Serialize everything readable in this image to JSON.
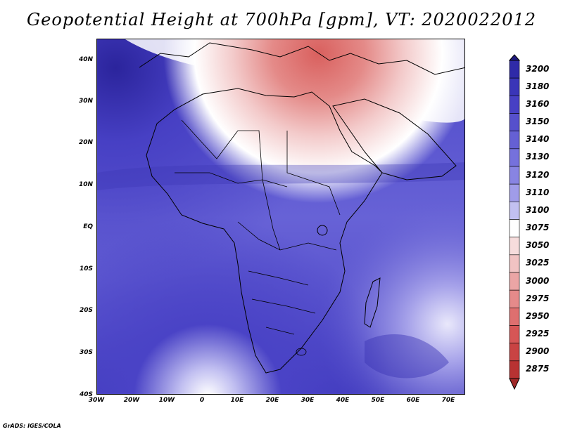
{
  "title": "Geopotential Height at 700hPa [gpm], VT: 2020022012",
  "credit": "GrADS: IGES/COLA",
  "map": {
    "lat_labels": [
      "40N",
      "30N",
      "20N",
      "10N",
      "EQ",
      "10S",
      "20S",
      "30S",
      "40S"
    ],
    "lat_values": [
      40,
      30,
      20,
      10,
      0,
      -10,
      -20,
      -30,
      -40
    ],
    "lon_labels": [
      "30W",
      "20W",
      "10W",
      "0",
      "10E",
      "20E",
      "30E",
      "40E",
      "50E",
      "60E",
      "70E"
    ],
    "lon_values": [
      -30,
      -20,
      -10,
      0,
      10,
      20,
      30,
      40,
      50,
      60,
      70
    ],
    "extent": {
      "lon_min": -30,
      "lon_max": 75,
      "lat_min": -40,
      "lat_max": 45
    },
    "field": "Geopotential Height at 700hPa",
    "units": "gpm",
    "valid_time": "2020022012"
  },
  "colorbar": {
    "labels": [
      "3200",
      "3180",
      "3160",
      "3150",
      "3140",
      "3130",
      "3120",
      "3110",
      "3100",
      "3075",
      "3050",
      "3025",
      "3000",
      "2975",
      "2950",
      "2925",
      "2900",
      "2875"
    ],
    "colors": [
      "#2f2aa8",
      "#3a35b8",
      "#4740c4",
      "#5650cc",
      "#6560d4",
      "#7571dc",
      "#8884e2",
      "#a09ce9",
      "#c2c0f1",
      "#ffffff",
      "#f6dcdc",
      "#f1c3c3",
      "#eba5a5",
      "#e58a8a",
      "#de6f6f",
      "#d65656",
      "#c94343",
      "#b83232"
    ]
  }
}
